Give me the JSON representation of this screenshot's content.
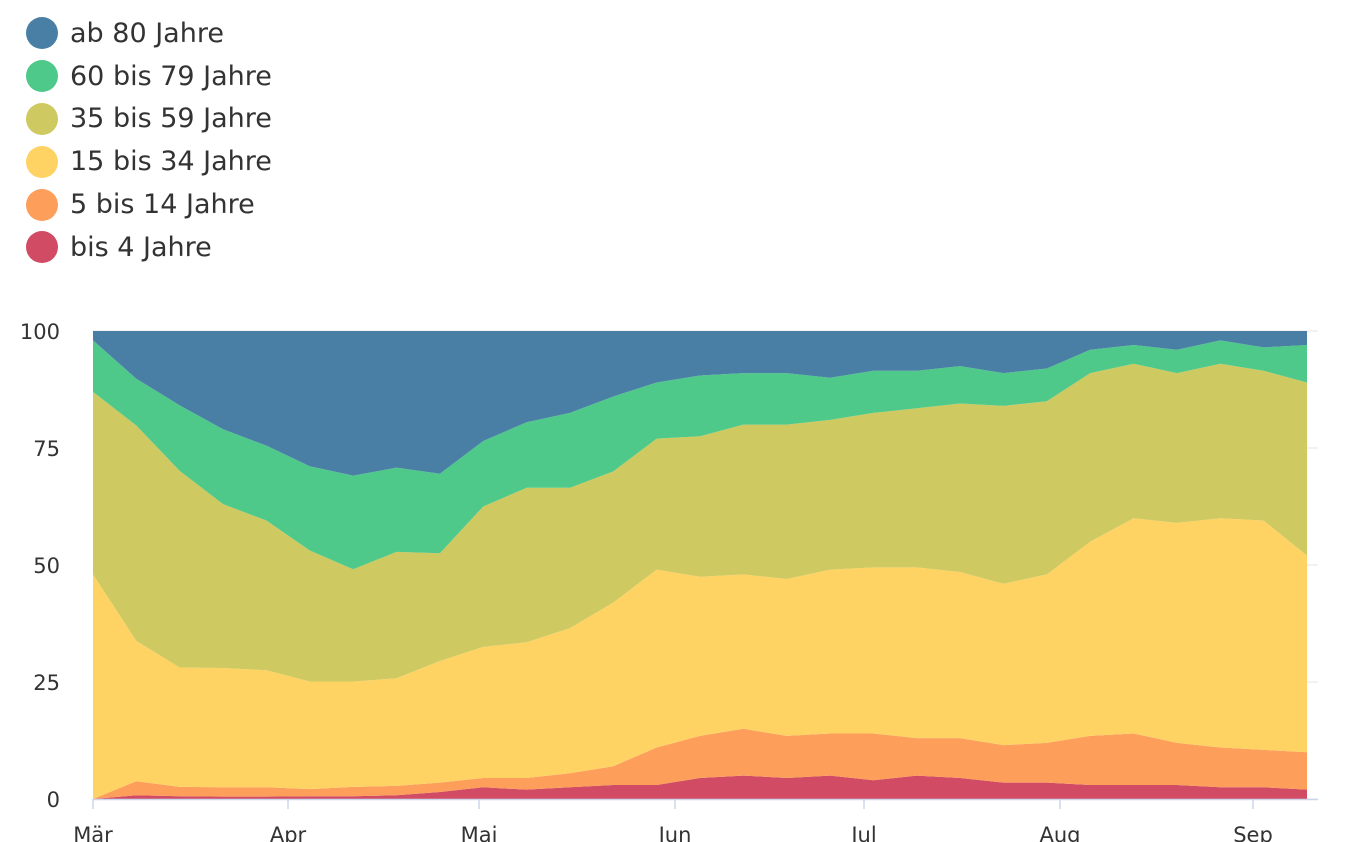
{
  "chart_data": {
    "type": "area",
    "stacked": true,
    "title": "",
    "xlabel": "",
    "ylabel": "",
    "ylim": [
      0,
      100
    ],
    "yticks": [
      "0",
      "25",
      "50",
      "75",
      "100"
    ],
    "xticks": [
      "Mär",
      "Apr",
      "Mai",
      "Jun",
      "Jul",
      "Aug",
      "Sep"
    ],
    "legend_position": "top-left",
    "grid": "horizontal",
    "x": [
      "01.03",
      "08.03",
      "15.03",
      "22.03",
      "29.03",
      "05.04",
      "12.04",
      "19.04",
      "26.04",
      "03.05",
      "10.05",
      "17.05",
      "24.05",
      "31.05",
      "07.06",
      "14.06",
      "21.06",
      "28.06",
      "05.07",
      "12.07",
      "19.07",
      "26.07",
      "02.08",
      "09.08",
      "16.08",
      "23.08",
      "30.08",
      "06.09",
      "09.09"
    ],
    "series": [
      {
        "name": "bis 4 Jahre",
        "color": "#d04b63",
        "values": [
          0,
          0.8,
          0.6,
          0.5,
          0.5,
          0.6,
          0.6,
          0.8,
          1.5,
          2.5,
          2.0,
          2.5,
          3.0,
          3.0,
          4.5,
          5.0,
          4.5,
          5.0,
          4.0,
          5.0,
          4.5,
          3.5,
          3.5,
          3.0,
          3.0,
          3.0,
          2.5,
          2.5,
          2.0
        ]
      },
      {
        "name": "5 bis 14 Jahre",
        "color": "#fd9e5b",
        "values": [
          0,
          3.0,
          2.0,
          2.0,
          2.0,
          1.5,
          2.0,
          2.0,
          2.0,
          2.0,
          2.5,
          3.0,
          4.0,
          8.0,
          9.0,
          10.0,
          9.0,
          9.0,
          10.0,
          8.0,
          8.5,
          8.0,
          8.5,
          10.5,
          11.0,
          9.0,
          8.5,
          8.0,
          8.0
        ]
      },
      {
        "name": "15 bis 34 Jahre",
        "color": "#fed364",
        "values": [
          48,
          30,
          25.5,
          25.5,
          25,
          23,
          22.5,
          23,
          26,
          28,
          29,
          31,
          35,
          38,
          34,
          33,
          33.5,
          35,
          35.5,
          36.5,
          35.5,
          34.5,
          36,
          41.5,
          46,
          47,
          49,
          49,
          42
        ]
      },
      {
        "name": "35 bis 59 Jahre",
        "color": "#cec960",
        "values": [
          39,
          46,
          42,
          35,
          32,
          28,
          24,
          27,
          23,
          30,
          33,
          30,
          28,
          28,
          30,
          32,
          33,
          32,
          33,
          34,
          36,
          38,
          37,
          36,
          33,
          32,
          33,
          32,
          37
        ]
      },
      {
        "name": "60 bis 79 Jahre",
        "color": "#4ec98a",
        "values": [
          11,
          10,
          14,
          16,
          16,
          18,
          20,
          18,
          17,
          14,
          14,
          16,
          16,
          12,
          13,
          11,
          11,
          9,
          9,
          8,
          8,
          7,
          7,
          5,
          4,
          5,
          5,
          5,
          8
        ]
      },
      {
        "name": "ab 80 Jahre",
        "color": "#4a7fa5",
        "values": [
          2,
          10.2,
          15.9,
          21,
          24.5,
          28.9,
          30.9,
          29.2,
          30.5,
          23.5,
          19.5,
          17.5,
          14,
          11,
          9.5,
          9,
          9,
          10,
          8.5,
          8.5,
          7.5,
          9,
          8,
          4,
          3,
          4,
          2,
          3.5,
          3
        ]
      }
    ]
  }
}
